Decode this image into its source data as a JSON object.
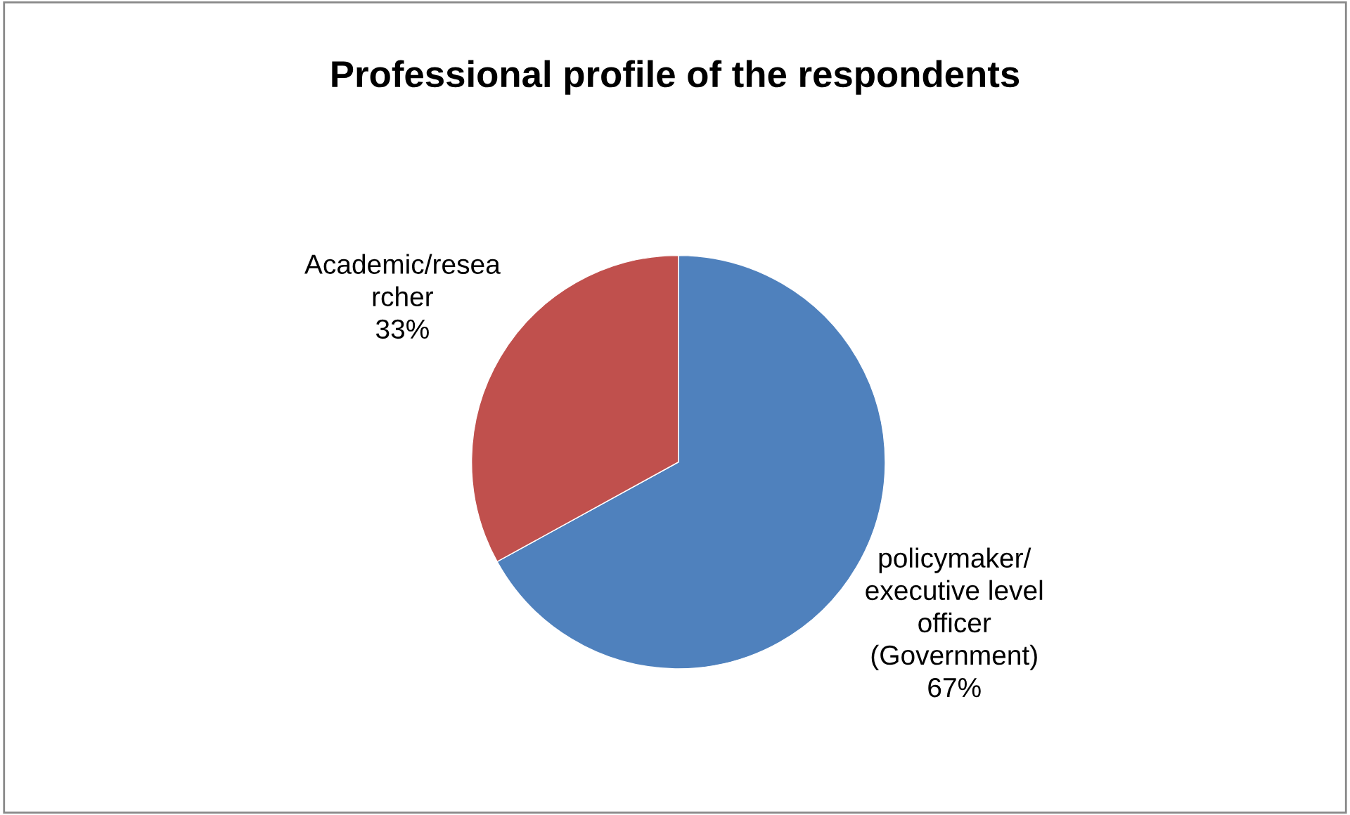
{
  "chart_data": {
    "type": "pie",
    "title": "Professional profile of the respondents",
    "categories": [
      "policymaker/\nexecutive level\nofficer\n(Government)",
      "Academic/resea\nrcher"
    ],
    "values": [
      67,
      33
    ],
    "colors": [
      "#4f81bd",
      "#c0504d"
    ],
    "value_labels": [
      "67%",
      "33%"
    ],
    "legend": false
  }
}
